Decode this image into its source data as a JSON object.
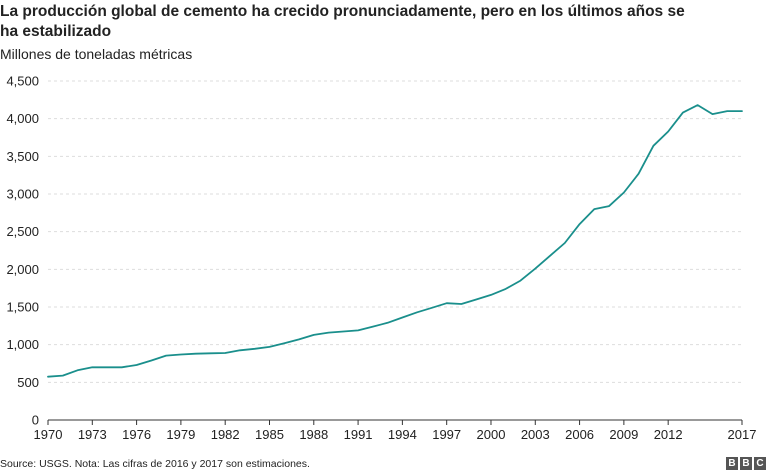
{
  "chart_data": {
    "type": "line",
    "title": "La producción global de cemento ha crecido pronunciadamente, pero en los últimos años se ha estabilizado",
    "ylabel": "Millones de toneladas métricas",
    "xlabel": "",
    "xlim": [
      1970,
      2017
    ],
    "ylim": [
      0,
      4500
    ],
    "x_ticks": [
      1970,
      1973,
      1976,
      1979,
      1982,
      1985,
      1988,
      1991,
      1994,
      1997,
      2000,
      2003,
      2006,
      2009,
      2012,
      2017
    ],
    "y_ticks": [
      0,
      500,
      1000,
      1500,
      2000,
      2500,
      3000,
      3500,
      4000,
      4500
    ],
    "y_tick_labels": [
      "0",
      "500",
      "1,000",
      "1,500",
      "2,000",
      "2,500",
      "3,000",
      "3,500",
      "4,000",
      "4,500"
    ],
    "grid": true,
    "series": [
      {
        "name": "Producción global de cemento",
        "color": "#1a8f8c",
        "x": [
          1970,
          1971,
          1972,
          1973,
          1974,
          1975,
          1976,
          1977,
          1978,
          1979,
          1980,
          1981,
          1982,
          1983,
          1984,
          1985,
          1986,
          1987,
          1988,
          1989,
          1990,
          1991,
          1992,
          1993,
          1994,
          1995,
          1996,
          1997,
          1998,
          1999,
          2000,
          2001,
          2002,
          2003,
          2004,
          2005,
          2006,
          2007,
          2008,
          2009,
          2010,
          2011,
          2012,
          2013,
          2014,
          2015,
          2016,
          2017
        ],
        "y": [
          575,
          590,
          660,
          700,
          700,
          700,
          730,
          790,
          855,
          870,
          880,
          885,
          890,
          925,
          945,
          970,
          1020,
          1070,
          1130,
          1160,
          1175,
          1190,
          1240,
          1290,
          1360,
          1430,
          1490,
          1550,
          1540,
          1600,
          1660,
          1740,
          1850,
          2010,
          2180,
          2350,
          2600,
          2800,
          2840,
          3020,
          3270,
          3640,
          3830,
          4080,
          4180,
          4060,
          4100,
          4100
        ]
      }
    ]
  },
  "source_text": "Source: USGS. Nota: Las cifras de 2016 y 2017 son estimaciones.",
  "brand": [
    "B",
    "B",
    "C"
  ]
}
